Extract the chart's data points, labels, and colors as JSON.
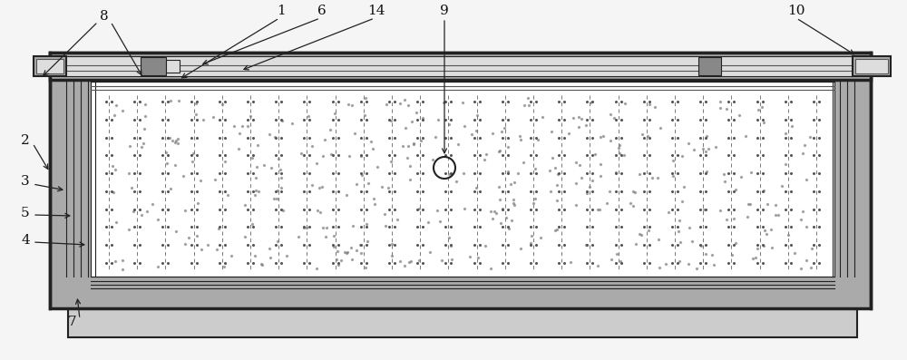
{
  "bg_color": "#f5f5f5",
  "dark": "#222222",
  "mid": "#555555",
  "light": "#999999",
  "white": "#ffffff",
  "gray1": "#cccccc",
  "gray2": "#aaaaaa",
  "gray3": "#888888",
  "gray4": "#dddddd",
  "panel_bg": "#e8e6e0",
  "lw_outer": 2.5,
  "lw_mid": 1.5,
  "lw_thin": 0.8,
  "lw_vt": 0.6
}
